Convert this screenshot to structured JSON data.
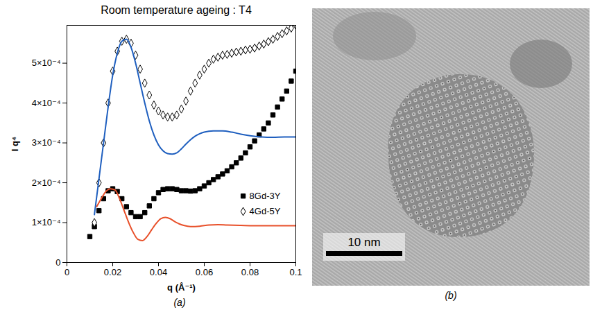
{
  "chart_data": {
    "type": "scatter",
    "title": "Room temperature ageing : T4",
    "caption": "(a)",
    "x_label": "q (Å⁻¹)",
    "y_label": "I q⁴",
    "xlim": [
      0,
      0.1
    ],
    "xticks": [
      0,
      0.02,
      0.04,
      0.06,
      0.08,
      0.1
    ],
    "ylim": [
      0,
      0.000595
    ],
    "yticks": [
      0,
      {
        "value": 0.0001,
        "label": "1×10⁻⁴"
      },
      {
        "value": 0.0002,
        "label": "2×10⁻⁴"
      },
      {
        "value": 0.0003,
        "label": "3×10⁻⁴"
      },
      {
        "value": 0.0004,
        "label": "4×10⁻⁴"
      },
      {
        "value": 0.0005,
        "label": "5×10⁻⁴"
      }
    ],
    "grid": false,
    "legend": "lower right",
    "series": [
      {
        "name": "8Gd-3Y",
        "type": "scatter",
        "marker": "square",
        "color": "#000000",
        "x": [
          0.01,
          0.012,
          0.014,
          0.016,
          0.018,
          0.02,
          0.022,
          0.024,
          0.026,
          0.028,
          0.03,
          0.032,
          0.034,
          0.036,
          0.038,
          0.04,
          0.042,
          0.044,
          0.046,
          0.048,
          0.05,
          0.052,
          0.054,
          0.056,
          0.058,
          0.06,
          0.062,
          0.064,
          0.066,
          0.068,
          0.07,
          0.072,
          0.074,
          0.076,
          0.078,
          0.08,
          0.082,
          0.084,
          0.086,
          0.088,
          0.09,
          0.092,
          0.094,
          0.096,
          0.098,
          0.1
        ],
        "values": [
          6.5e-05,
          9e-05,
          0.00013,
          0.00016,
          0.00018,
          0.000185,
          0.000178,
          0.00016,
          0.00014,
          0.000125,
          0.000115,
          0.000115,
          0.000125,
          0.000142,
          0.00016,
          0.000175,
          0.000183,
          0.000185,
          0.000185,
          0.000183,
          0.00018,
          0.00018,
          0.000179,
          0.00018,
          0.000185,
          0.000192,
          0.0002,
          0.000208,
          0.000215,
          0.000222,
          0.00023,
          0.00024,
          0.00025,
          0.000262,
          0.000275,
          0.00029,
          0.000305,
          0.00032,
          0.000335,
          0.00035,
          0.00037,
          0.00039,
          0.00041,
          0.00043,
          0.000455,
          0.00048
        ]
      },
      {
        "name": "4Gd-5Y",
        "type": "scatter",
        "marker": "open-diamond",
        "color": "#000000",
        "x": [
          0.012,
          0.014,
          0.016,
          0.018,
          0.02,
          0.022,
          0.024,
          0.026,
          0.028,
          0.03,
          0.032,
          0.034,
          0.036,
          0.038,
          0.04,
          0.042,
          0.044,
          0.046,
          0.048,
          0.05,
          0.052,
          0.054,
          0.056,
          0.058,
          0.06,
          0.062,
          0.064,
          0.066,
          0.068,
          0.07,
          0.072,
          0.074,
          0.076,
          0.078,
          0.08,
          0.082,
          0.084,
          0.086,
          0.088,
          0.09,
          0.092,
          0.094,
          0.096,
          0.098,
          0.1
        ],
        "values": [
          0.0001,
          0.0002,
          0.0003,
          0.0004,
          0.00048,
          0.00053,
          0.000555,
          0.00056,
          0.00055,
          0.00052,
          0.000485,
          0.00045,
          0.00042,
          0.000395,
          0.00038,
          0.00037,
          0.000365,
          0.000365,
          0.00037,
          0.000385,
          0.000405,
          0.00043,
          0.00045,
          0.00047,
          0.000485,
          0.0005,
          0.00051,
          0.000515,
          0.00052,
          0.000522,
          0.000525,
          0.000528,
          0.00053,
          0.000533,
          0.000535,
          0.000538,
          0.000543,
          0.000548,
          0.000554,
          0.00056,
          0.000567,
          0.000574,
          0.000581,
          0.000588,
          0.000595
        ]
      },
      {
        "type": "line",
        "color": "#1f5fbf",
        "x": [
          0.012,
          0.014,
          0.016,
          0.018,
          0.02,
          0.022,
          0.024,
          0.026,
          0.028,
          0.03,
          0.032,
          0.034,
          0.036,
          0.038,
          0.04,
          0.042,
          0.044,
          0.046,
          0.048,
          0.05,
          0.052,
          0.054,
          0.056,
          0.058,
          0.06,
          0.064,
          0.068,
          0.072,
          0.076,
          0.08,
          0.085,
          0.09,
          0.095,
          0.1
        ],
        "values": [
          0.00012,
          0.00021,
          0.0003,
          0.00039,
          0.00047,
          0.000525,
          0.000555,
          0.00056,
          0.00054,
          0.0005,
          0.00045,
          0.0004,
          0.000355,
          0.00032,
          0.000295,
          0.00028,
          0.000273,
          0.000272,
          0.000275,
          0.000285,
          0.000297,
          0.000308,
          0.000317,
          0.000323,
          0.000327,
          0.00033,
          0.00033,
          0.000327,
          0.000322,
          0.000318,
          0.000315,
          0.000314,
          0.000315,
          0.000315
        ]
      },
      {
        "type": "line",
        "color": "#e8502a",
        "x": [
          0.013,
          0.015,
          0.017,
          0.019,
          0.021,
          0.023,
          0.025,
          0.027,
          0.029,
          0.031,
          0.033,
          0.035,
          0.037,
          0.039,
          0.041,
          0.043,
          0.045,
          0.047,
          0.049,
          0.051,
          0.054,
          0.058,
          0.062,
          0.066,
          0.07,
          0.076,
          0.085,
          0.1
        ],
        "values": [
          0.00014,
          0.00016,
          0.000178,
          0.000185,
          0.000182,
          0.00016,
          0.00013,
          0.0001,
          7.5e-05,
          5.8e-05,
          5.5e-05,
          6.5e-05,
          8.2e-05,
          9.8e-05,
          0.00011,
          0.000113,
          0.00011,
          0.000103,
          9.7e-05,
          9.3e-05,
          9e-05,
          9.1e-05,
          9.4e-05,
          9.5e-05,
          9.4e-05,
          9.3e-05,
          9.2e-05,
          9.2e-05
        ]
      }
    ]
  },
  "image_panel": {
    "caption": "(b)",
    "scale_bar": "10 nm"
  }
}
